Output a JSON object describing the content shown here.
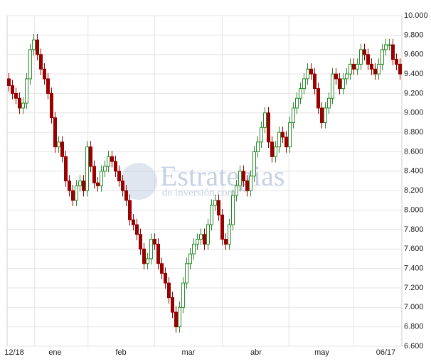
{
  "chart_data": {
    "type": "candlestick",
    "watermark": [
      "Estrategias",
      "de inversión.com"
    ],
    "up_color": "#2a8a2a",
    "down_color": "#990000",
    "grid": true,
    "xlim": [
      0,
      111
    ],
    "xticks": [
      {
        "value": 2,
        "label": "12/18"
      },
      {
        "value": 13.5,
        "label": "ene"
      },
      {
        "value": 32,
        "label": "feb"
      },
      {
        "value": 51,
        "label": "mar"
      },
      {
        "value": 70,
        "label": "abr"
      },
      {
        "value": 88.5,
        "label": "may"
      },
      {
        "value": 106.5,
        "label": "06/17"
      }
    ],
    "ylim": [
      6600,
      10000
    ],
    "yticks": [
      {
        "value": 6600,
        "label": "6.600"
      },
      {
        "value": 6800,
        "label": "6.800"
      },
      {
        "value": 7000,
        "label": "7.000"
      },
      {
        "value": 7200,
        "label": "7.200"
      },
      {
        "value": 7400,
        "label": "7.400"
      },
      {
        "value": 7600,
        "label": "7.600"
      },
      {
        "value": 7800,
        "label": "7.800"
      },
      {
        "value": 8000,
        "label": "8.000"
      },
      {
        "value": 8200,
        "label": "8.200"
      },
      {
        "value": 8400,
        "label": "8.400"
      },
      {
        "value": 8600,
        "label": "8.600"
      },
      {
        "value": 8800,
        "label": "8.800"
      },
      {
        "value": 9000,
        "label": "9.000"
      },
      {
        "value": 9200,
        "label": "9.200"
      },
      {
        "value": 9400,
        "label": "9.400"
      },
      {
        "value": 9600,
        "label": "9.600"
      },
      {
        "value": 9800,
        "label": "9.800"
      },
      {
        "value": 10000,
        "label": "10.000"
      }
    ],
    "open": [
      9350,
      9280,
      9200,
      9150,
      9050,
      9100,
      9350,
      9650,
      9750,
      9600,
      9450,
      9350,
      9200,
      8950,
      8650,
      8700,
      8550,
      8300,
      8200,
      8100,
      8250,
      8300,
      8200,
      8650,
      8450,
      8280,
      8250,
      8400,
      8450,
      8550,
      8500,
      8400,
      8300,
      8200,
      8100,
      7900,
      7850,
      7750,
      7600,
      7450,
      7500,
      7700,
      7650,
      7450,
      7350,
      7250,
      7100,
      6950,
      6800,
      7000,
      7250,
      7450,
      7550,
      7650,
      7700,
      7750,
      7650,
      7850,
      8050,
      8100,
      7950,
      7700,
      7650,
      7850,
      8150,
      8250,
      8400,
      8300,
      8200,
      8350,
      8600,
      8700,
      8850,
      9000,
      8700,
      8550,
      8650,
      8800,
      8750,
      8650,
      8900,
      9050,
      9150,
      9250,
      9350,
      9450,
      9400,
      9250,
      9050,
      8900,
      9050,
      9150,
      9400,
      9350,
      9250,
      9350,
      9400,
      9500,
      9450,
      9500,
      9650,
      9600,
      9500,
      9450,
      9400,
      9500,
      9650,
      9700,
      9700,
      9550,
      9500
    ],
    "high": [
      9410,
      9340,
      9260,
      9210,
      9160,
      9410,
      9710,
      9810,
      9810,
      9660,
      9510,
      9410,
      9260,
      9010,
      8760,
      8760,
      8610,
      8360,
      8260,
      8310,
      8360,
      8360,
      8710,
      8710,
      8510,
      8340,
      8460,
      8510,
      8610,
      8610,
      8560,
      8460,
      8360,
      8260,
      8160,
      7960,
      7910,
      7810,
      7660,
      7560,
      7760,
      7760,
      7710,
      7510,
      7410,
      7310,
      7160,
      7010,
      7060,
      7310,
      7510,
      7610,
      7710,
      7760,
      7810,
      7810,
      7910,
      8110,
      8160,
      8160,
      8010,
      7760,
      7910,
      8210,
      8310,
      8460,
      8460,
      8360,
      8410,
      8660,
      8760,
      8910,
      9060,
      9060,
      8760,
      8710,
      8860,
      8860,
      8810,
      8960,
      9110,
      9210,
      9310,
      9410,
      9510,
      9510,
      9460,
      9310,
      9110,
      9110,
      9210,
      9460,
      9460,
      9410,
      9410,
      9460,
      9560,
      9560,
      9560,
      9710,
      9710,
      9660,
      9560,
      9510,
      9560,
      9710,
      9760,
      9760,
      9760,
      9610,
      9560
    ],
    "low": [
      9220,
      9140,
      9090,
      8990,
      8990,
      9040,
      9290,
      9590,
      9540,
      9390,
      9290,
      9140,
      8890,
      8590,
      8590,
      8490,
      8240,
      8140,
      8040,
      8040,
      8190,
      8140,
      8140,
      8390,
      8220,
      8190,
      8190,
      8340,
      8390,
      8440,
      8340,
      8240,
      8140,
      8040,
      7840,
      7790,
      7690,
      7540,
      7390,
      7390,
      7440,
      7590,
      7390,
      7290,
      7190,
      7040,
      6890,
      6740,
      6740,
      6940,
      7190,
      7390,
      7490,
      7590,
      7640,
      7590,
      7590,
      7790,
      7990,
      7890,
      7640,
      7590,
      7590,
      7790,
      8090,
      8190,
      8240,
      8140,
      8140,
      8290,
      8540,
      8640,
      8790,
      8640,
      8490,
      8490,
      8590,
      8690,
      8590,
      8590,
      8840,
      8990,
      9090,
      9190,
      9290,
      9340,
      9190,
      8990,
      8840,
      8840,
      8990,
      9090,
      9290,
      9190,
      9190,
      9290,
      9340,
      9390,
      9390,
      9440,
      9540,
      9440,
      9390,
      9340,
      9340,
      9440,
      9590,
      9640,
      9490,
      9440,
      9340
    ],
    "close": [
      9280,
      9200,
      9150,
      9050,
      9100,
      9350,
      9650,
      9750,
      9600,
      9450,
      9350,
      9200,
      8950,
      8650,
      8700,
      8550,
      8300,
      8200,
      8100,
      8250,
      8300,
      8200,
      8650,
      8450,
      8280,
      8250,
      8400,
      8450,
      8550,
      8500,
      8400,
      8300,
      8200,
      8100,
      7900,
      7850,
      7750,
      7600,
      7450,
      7500,
      7700,
      7650,
      7450,
      7350,
      7250,
      7100,
      6950,
      6800,
      7000,
      7250,
      7450,
      7550,
      7650,
      7700,
      7750,
      7650,
      7850,
      8050,
      8100,
      7950,
      7700,
      7650,
      7850,
      8150,
      8250,
      8400,
      8300,
      8200,
      8350,
      8600,
      8700,
      8850,
      9000,
      8700,
      8550,
      8650,
      8800,
      8750,
      8650,
      8900,
      9050,
      9150,
      9250,
      9350,
      9450,
      9400,
      9250,
      9050,
      8900,
      9050,
      9150,
      9400,
      9350,
      9250,
      9350,
      9400,
      9500,
      9450,
      9500,
      9650,
      9600,
      9500,
      9450,
      9400,
      9500,
      9650,
      9700,
      9700,
      9550,
      9500,
      9400
    ]
  }
}
